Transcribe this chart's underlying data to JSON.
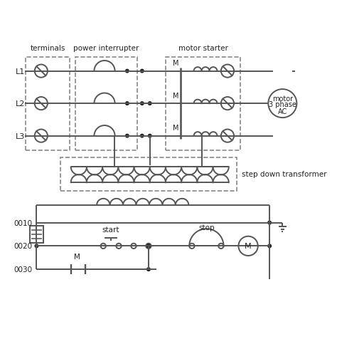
{
  "bg_color": "#ffffff",
  "line_color": "#555555",
  "line_width": 1.4,
  "text_color": "#222222",
  "dot_color": "#222222",
  "labels": {
    "terminals": "terminals",
    "power_interrupter": "power interrupter",
    "motor_starter": "motor starter",
    "step_down": "step down transformer",
    "motor_line1": "motor",
    "motor_line2": "3 phase",
    "motor_line3": "AC",
    "L1": "L1",
    "L2": "L2",
    "L3": "L3",
    "start": "start",
    "stop": "stop",
    "M_coil": "M",
    "M_contact": "M",
    "n0010": "0010",
    "n0020": "0020",
    "n0030": "0030"
  }
}
